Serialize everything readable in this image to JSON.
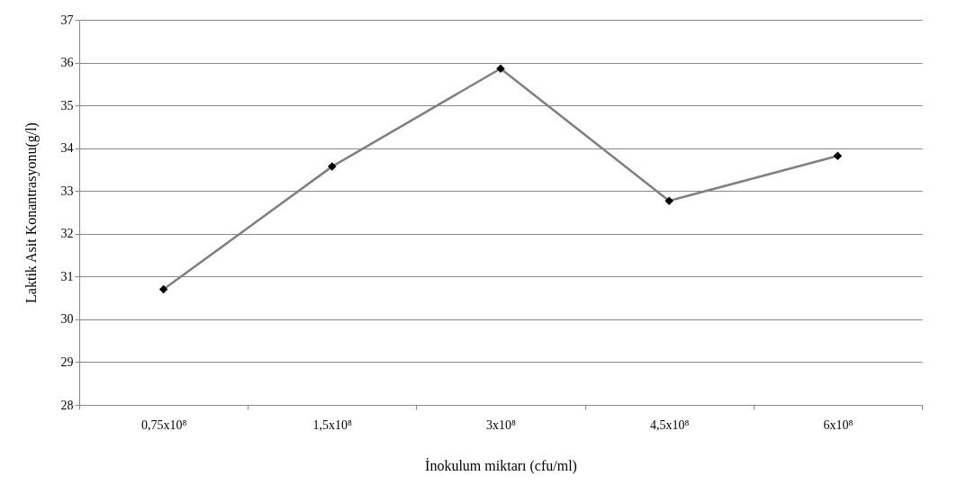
{
  "chart_data": {
    "type": "line",
    "xlabel": "İnokulum miktarı (cfu/ml)",
    "ylabel": "Laktik Asit Konantrasyonu(g/l)",
    "categories": [
      "0,75x10⁸",
      "1,5x10⁸",
      "3x10⁸",
      "4,5x10⁸",
      "6x10⁸"
    ],
    "series": [
      {
        "color": "#808080",
        "values": [
          30.7,
          33.57,
          35.86,
          32.77,
          33.82
        ]
      }
    ],
    "ylim": [
      28,
      37
    ],
    "yticks": [
      28,
      29,
      30,
      31,
      32,
      33,
      34,
      35,
      36,
      37
    ],
    "grid": "y",
    "marker": "diamond",
    "line_style": "solid"
  }
}
